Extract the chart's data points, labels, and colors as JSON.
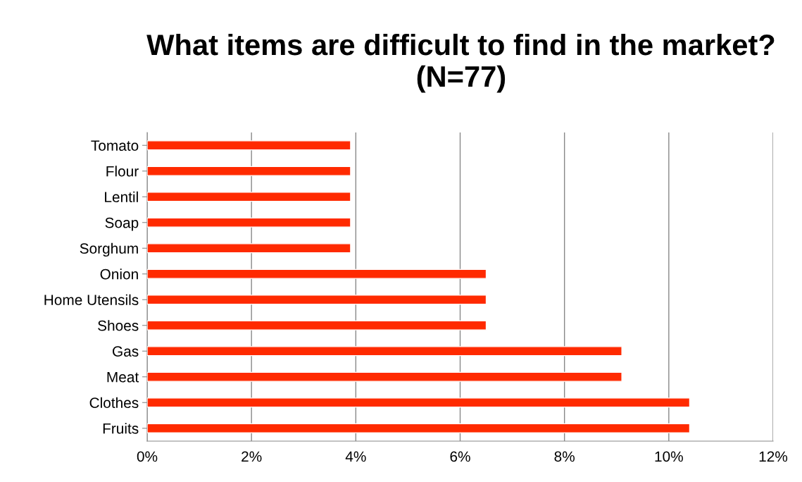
{
  "chart_data": {
    "type": "bar",
    "orientation": "horizontal",
    "title": "What items are difficult to find in the market? (N=77)",
    "categories": [
      "Tomato",
      "Flour",
      "Lentil",
      "Soap",
      "Sorghum",
      "Onion",
      "Home Utensils",
      "Shoes",
      "Gas",
      "Meat",
      "Clothes",
      "Fruits"
    ],
    "values": [
      3.9,
      3.9,
      3.9,
      3.9,
      3.9,
      6.5,
      6.5,
      6.5,
      9.1,
      9.1,
      10.4,
      10.4
    ],
    "color": "#ff2a00",
    "xlim": [
      0,
      12
    ],
    "xticks": [
      {
        "value": 0,
        "label": "0%"
      },
      {
        "value": 2,
        "label": "2%"
      },
      {
        "value": 4,
        "label": "4%"
      },
      {
        "value": 6,
        "label": "6%"
      },
      {
        "value": 8,
        "label": "8%"
      },
      {
        "value": 10,
        "label": "10%"
      },
      {
        "value": 12,
        "label": "12%"
      }
    ],
    "grid": "x",
    "legend": false
  }
}
